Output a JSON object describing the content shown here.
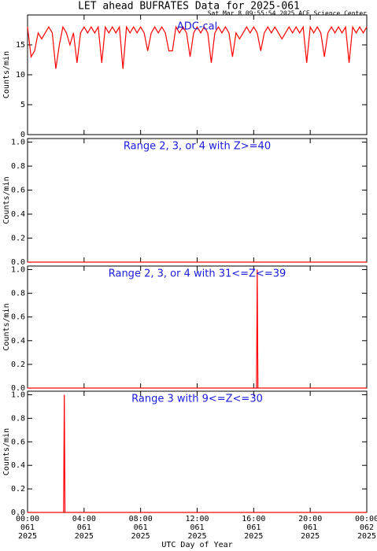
{
  "chart_data": [
    {
      "type": "line",
      "title": "LET ahead BUFRATES Data for 2025-061",
      "subtitle": "Sat Mar  8 09:55:54 2025 ACE Science Center",
      "annotation": "ADC-cal",
      "y_label": "Counts/min",
      "color": "#ff0000",
      "xlim": [
        0,
        24
      ],
      "xticks": [
        0,
        4,
        8,
        12,
        16,
        20,
        24
      ],
      "ylim": [
        0,
        20
      ],
      "yticks": [
        0,
        5,
        10,
        15
      ],
      "x": [
        0,
        0.25,
        0.5,
        0.75,
        1,
        1.25,
        1.5,
        1.75,
        2,
        2.25,
        2.5,
        2.75,
        3,
        3.25,
        3.5,
        3.75,
        4,
        4.25,
        4.5,
        4.75,
        5,
        5.25,
        5.5,
        5.75,
        6,
        6.25,
        6.5,
        6.75,
        7,
        7.25,
        7.5,
        7.75,
        8,
        8.25,
        8.5,
        8.75,
        9,
        9.25,
        9.5,
        9.75,
        10,
        10.25,
        10.5,
        10.75,
        11,
        11.25,
        11.5,
        11.75,
        12,
        12.25,
        12.5,
        12.75,
        13,
        13.25,
        13.5,
        13.75,
        14,
        14.25,
        14.5,
        14.75,
        15,
        15.25,
        15.5,
        15.75,
        16,
        16.25,
        16.5,
        16.75,
        17,
        17.25,
        17.5,
        17.75,
        18,
        18.25,
        18.5,
        18.75,
        19,
        19.25,
        19.5,
        19.75,
        20,
        20.25,
        20.5,
        20.75,
        21,
        21.25,
        21.5,
        21.75,
        22,
        22.25,
        22.5,
        22.75,
        23,
        23.25,
        23.5,
        23.75,
        24
      ],
      "values": [
        18,
        13,
        14,
        17,
        16,
        17,
        18,
        17,
        11,
        15,
        18,
        17,
        15,
        17,
        12,
        17,
        18,
        17,
        18,
        17,
        18,
        12,
        18,
        17,
        18,
        17,
        18,
        11,
        18,
        17,
        18,
        17,
        18,
        17,
        14,
        17,
        18,
        17,
        18,
        17,
        14,
        14,
        18,
        17,
        18,
        17,
        13,
        17,
        18,
        17,
        18,
        17,
        12,
        17,
        18,
        17,
        18,
        17,
        13,
        17,
        16,
        17,
        18,
        17,
        18,
        17,
        14,
        17,
        18,
        17,
        18,
        17,
        16,
        17,
        18,
        17,
        18,
        17,
        18,
        12,
        18,
        17,
        18,
        17,
        13,
        17,
        18,
        17,
        18,
        17,
        18,
        12,
        18,
        17,
        18,
        17,
        18
      ]
    },
    {
      "type": "line",
      "annotation": "Range 2, 3, or 4 with Z>=40",
      "y_label": "Counts/min",
      "color": "#ff0000",
      "xlim": [
        0,
        24
      ],
      "xticks": [
        0,
        4,
        8,
        12,
        16,
        20,
        24
      ],
      "ylim": [
        0,
        1.03
      ],
      "yticks": [
        {
          "value": 0,
          "label": "0.0"
        },
        {
          "value": 0.2,
          "label": "0.2"
        },
        {
          "value": 0.4,
          "label": "0.4"
        },
        {
          "value": 0.6,
          "label": "0.6"
        },
        {
          "value": 0.8,
          "label": "0.8"
        },
        {
          "value": 1,
          "label": "1.0"
        }
      ],
      "x": [
        0,
        24
      ],
      "values": [
        0,
        0
      ]
    },
    {
      "type": "line",
      "annotation": "Range 2, 3, or 4 with 31<=Z<=39",
      "y_label": "Counts/min",
      "color": "#ff0000",
      "xlim": [
        0,
        24
      ],
      "xticks": [
        0,
        4,
        8,
        12,
        16,
        20,
        24
      ],
      "ylim": [
        0,
        1.03
      ],
      "yticks": [
        {
          "value": 0,
          "label": "0.0"
        },
        {
          "value": 0.2,
          "label": "0.2"
        },
        {
          "value": 0.4,
          "label": "0.4"
        },
        {
          "value": 0.6,
          "label": "0.6"
        },
        {
          "value": 0.8,
          "label": "0.8"
        },
        {
          "value": 1,
          "label": "1.0"
        }
      ],
      "x": [
        0,
        16.2,
        16.25,
        16.3,
        24
      ],
      "values": [
        0,
        0,
        1,
        0,
        0
      ]
    },
    {
      "type": "line",
      "annotation": "Range 3 with 9<=Z<=30",
      "y_label": "Counts/min",
      "x_label": "UTC Day of Year",
      "color": "#ff0000",
      "xlim": [
        0,
        24
      ],
      "xticks": [
        {
          "value": 0,
          "label": "00:00"
        },
        {
          "value": 4,
          "label": "04:00"
        },
        {
          "value": 8,
          "label": "08:00"
        },
        {
          "value": 12,
          "label": "12:00"
        },
        {
          "value": 16,
          "label": "16:00"
        },
        {
          "value": 20,
          "label": "20:00"
        },
        {
          "value": 24,
          "label": "00:00"
        }
      ],
      "xtick_days": [
        "061",
        "061",
        "061",
        "061",
        "061",
        "061",
        "062"
      ],
      "xtick_years": [
        "2025",
        "2025",
        "2025",
        "2025",
        "2025",
        "2025",
        "2025"
      ],
      "ylim": [
        0,
        1.03
      ],
      "yticks": [
        {
          "value": 0,
          "label": "0.0"
        },
        {
          "value": 0.2,
          "label": "0.2"
        },
        {
          "value": 0.4,
          "label": "0.4"
        },
        {
          "value": 0.6,
          "label": "0.6"
        },
        {
          "value": 0.8,
          "label": "0.8"
        },
        {
          "value": 1,
          "label": "1.0"
        }
      ],
      "x": [
        0,
        2.55,
        2.6,
        2.65,
        24
      ],
      "values": [
        0,
        0,
        1,
        0,
        0
      ]
    }
  ]
}
